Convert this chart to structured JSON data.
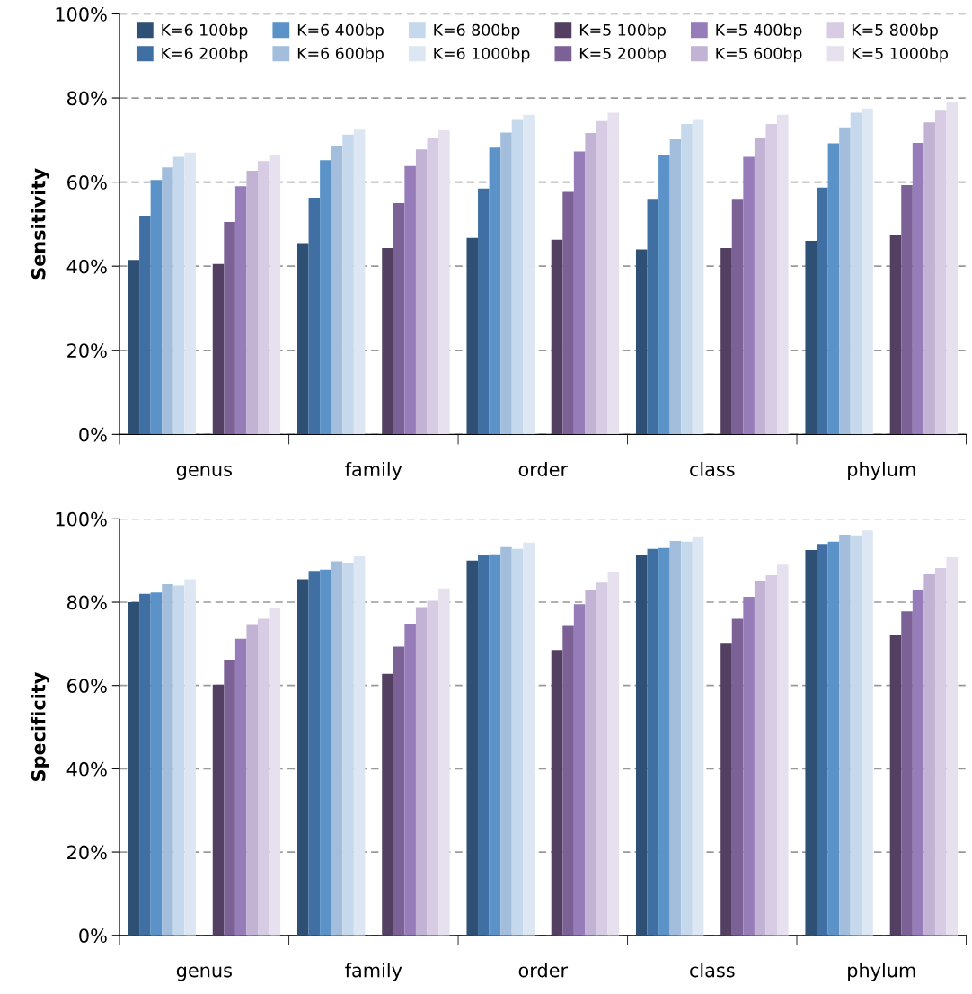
{
  "chart_data": [
    {
      "type": "bar",
      "ylabel": "Sensitivity",
      "categories": [
        "genus",
        "family",
        "order",
        "class",
        "phylum"
      ],
      "ylim": [
        0,
        100
      ],
      "yticks": [
        {
          "value": 0,
          "label": "0%"
        },
        {
          "value": 20,
          "label": "20%"
        },
        {
          "value": 40,
          "label": "40%"
        },
        {
          "value": 60,
          "label": "60%"
        },
        {
          "value": 80,
          "label": "80%"
        },
        {
          "value": 100,
          "label": "100%"
        }
      ],
      "grid": "y",
      "legend": "top",
      "series": [
        {
          "name": "K=6 100bp",
          "color": "#2f5075",
          "values": [
            41.5,
            45.5,
            46.7,
            44,
            46
          ]
        },
        {
          "name": "K=6 200bp",
          "color": "#3f6fa3",
          "values": [
            52,
            56.3,
            58.5,
            56,
            58.7
          ]
        },
        {
          "name": "K=6 400bp",
          "color": "#5b93c8",
          "values": [
            60.5,
            65.2,
            68.2,
            66.5,
            69.2
          ]
        },
        {
          "name": "K=6 600bp",
          "color": "#a3bedd",
          "values": [
            63.5,
            68.5,
            71.8,
            70.2,
            73
          ]
        },
        {
          "name": "K=6 800bp",
          "color": "#c6d8ec",
          "values": [
            66,
            71.3,
            75,
            73.8,
            76.5
          ]
        },
        {
          "name": "K=6 1000bp",
          "color": "#dde7f3",
          "values": [
            67,
            72.5,
            76,
            75,
            77.5
          ]
        },
        {
          "name": "K=5 100bp",
          "color": "#533f62",
          "values": [
            40.5,
            44.3,
            46.3,
            44.3,
            47.3
          ]
        },
        {
          "name": "K=5 200bp",
          "color": "#7b6196",
          "values": [
            50.5,
            55,
            57.7,
            56,
            59.3
          ]
        },
        {
          "name": "K=5 400bp",
          "color": "#967cb8",
          "values": [
            59,
            63.8,
            67.3,
            66,
            69.3
          ]
        },
        {
          "name": "K=5 600bp",
          "color": "#c2b2d3",
          "values": [
            62.7,
            67.8,
            71.7,
            70.5,
            74.2
          ]
        },
        {
          "name": "K=5 800bp",
          "color": "#d7cce4",
          "values": [
            65,
            70.5,
            74.5,
            73.8,
            77.2
          ]
        },
        {
          "name": "K=5 1000bp",
          "color": "#e7e0ee",
          "values": [
            66.5,
            72.3,
            76.5,
            76,
            79
          ]
        }
      ]
    },
    {
      "type": "bar",
      "ylabel": "Specificity",
      "categories": [
        "genus",
        "family",
        "order",
        "class",
        "phylum"
      ],
      "ylim": [
        0,
        100
      ],
      "yticks": [
        {
          "value": 0,
          "label": "0%"
        },
        {
          "value": 20,
          "label": "20%"
        },
        {
          "value": 40,
          "label": "40%"
        },
        {
          "value": 60,
          "label": "60%"
        },
        {
          "value": 80,
          "label": "80%"
        },
        {
          "value": 100,
          "label": "100%"
        }
      ],
      "grid": "y",
      "series": [
        {
          "color": "#2f5075",
          "values": [
            80,
            85.5,
            90,
            91.3,
            92.5
          ]
        },
        {
          "color": "#3f6fa3",
          "values": [
            82,
            87.5,
            91.3,
            92.8,
            94
          ]
        },
        {
          "color": "#5b93c8",
          "values": [
            82.3,
            87.8,
            91.5,
            93,
            94.5
          ]
        },
        {
          "color": "#a3bedd",
          "values": [
            84.3,
            89.8,
            93.2,
            94.7,
            96.2
          ]
        },
        {
          "color": "#c6d8ec",
          "values": [
            84,
            89.5,
            92.8,
            94.5,
            96
          ]
        },
        {
          "color": "#dde7f3",
          "values": [
            85.5,
            91,
            94.3,
            95.8,
            97.2
          ]
        },
        {
          "color": "#533f62",
          "values": [
            60.2,
            62.8,
            68.5,
            70,
            72
          ]
        },
        {
          "color": "#7b6196",
          "values": [
            66.2,
            69.3,
            74.5,
            76,
            77.8
          ]
        },
        {
          "color": "#967cb8",
          "values": [
            71.2,
            74.8,
            79.5,
            81.3,
            83
          ]
        },
        {
          "color": "#c2b2d3",
          "values": [
            74.7,
            78.8,
            83,
            85,
            86.7
          ]
        },
        {
          "color": "#d7cce4",
          "values": [
            76,
            80.3,
            84.7,
            86.5,
            88.2
          ]
        },
        {
          "color": "#e7e0ee",
          "values": [
            78.5,
            83.3,
            87.3,
            89,
            90.8
          ]
        }
      ]
    }
  ]
}
